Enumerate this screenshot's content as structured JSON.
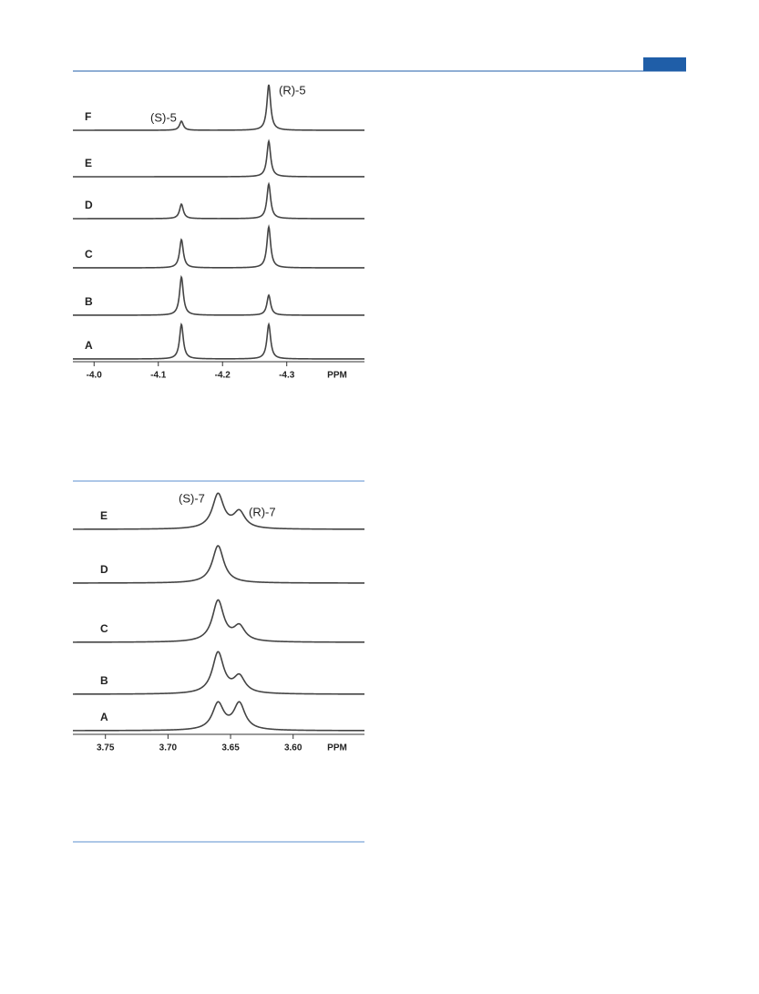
{
  "chart_data": [
    {
      "type": "spectrum",
      "x": [
        -4.136,
        -4.272
      ],
      "xlim": [
        -3.967,
        -4.421
      ],
      "xticks": [
        {
          "value": -4,
          "label": "-4.0"
        },
        -4.1,
        -4.2,
        -4.3
      ],
      "xlabel": "PPM",
      "color": "#444444",
      "series": [
        {
          "name": "F",
          "values": [
            10,
            50
          ]
        },
        {
          "name": "E",
          "values": [
            0,
            39
          ]
        },
        {
          "name": "D",
          "values": [
            16,
            38
          ]
        },
        {
          "name": "C",
          "values": [
            31,
            45
          ]
        },
        {
          "name": "B",
          "values": [
            42,
            22
          ]
        },
        {
          "name": "A",
          "values": [
            38,
            38
          ]
        }
      ],
      "annotations": [
        "(S)-5",
        "(R)-5"
      ]
    },
    {
      "type": "spectrum",
      "x": [
        3.66,
        3.643
      ],
      "xlim": [
        3.776,
        3.543
      ],
      "xticks": [
        3.75,
        {
          "value": 3.7,
          "label": "3.70"
        },
        3.65,
        {
          "value": 3.6,
          "label": "3.60"
        }
      ],
      "xlabel": "PPM",
      "color": "#444444",
      "series": [
        {
          "name": "E",
          "values": [
            38,
            18
          ]
        },
        {
          "name": "D",
          "values": [
            41,
            0
          ]
        },
        {
          "name": "C",
          "values": [
            45,
            16
          ]
        },
        {
          "name": "B",
          "values": [
            45,
            18
          ]
        },
        {
          "name": "A",
          "values": [
            29,
            29
          ]
        }
      ],
      "annotations": [
        "(S)-7",
        "(R)-7"
      ]
    }
  ]
}
